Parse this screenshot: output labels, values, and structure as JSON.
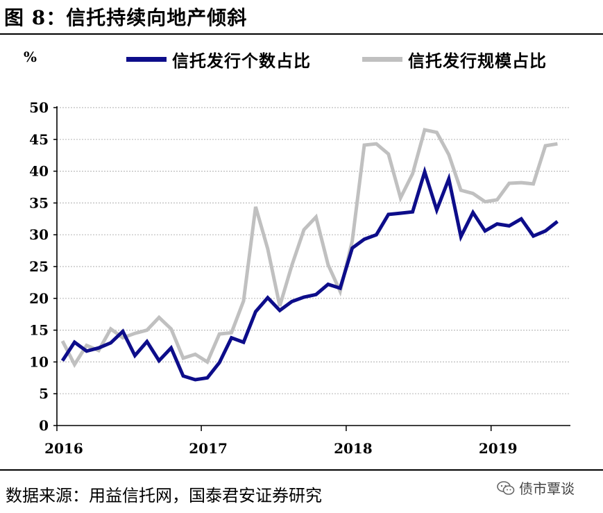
{
  "figure": {
    "title": "图 8：信托持续向地产倾斜",
    "unit": "%",
    "source": "数据来源：用益信托网，国泰君安证券研究",
    "watermark": "债市覃谈"
  },
  "chart_data": {
    "type": "line",
    "ylabel": "%",
    "ylim": [
      0,
      50
    ],
    "yticks": [
      0,
      5,
      10,
      15,
      20,
      25,
      30,
      35,
      40,
      45,
      50
    ],
    "xticks": [
      "2016",
      "2017",
      "2018",
      "2019"
    ],
    "grid": true,
    "legend_position": "top",
    "x": [
      "2016-01",
      "2016-02",
      "2016-03",
      "2016-04",
      "2016-05",
      "2016-06",
      "2016-07",
      "2016-08",
      "2016-09",
      "2016-10",
      "2016-11",
      "2016-12",
      "2017-01",
      "2017-02",
      "2017-03",
      "2017-04",
      "2017-05",
      "2017-06",
      "2017-07",
      "2017-08",
      "2017-09",
      "2017-10",
      "2017-11",
      "2017-12",
      "2018-01",
      "2018-02",
      "2018-03",
      "2018-04",
      "2018-05",
      "2018-06",
      "2018-07",
      "2018-08",
      "2018-09",
      "2018-10",
      "2018-11",
      "2018-12",
      "2019-01",
      "2019-02",
      "2019-03",
      "2019-04",
      "2019-05",
      "2019-06"
    ],
    "series": [
      {
        "name": "信托发行个数占比",
        "color": "#0d0d8a",
        "values": [
          10.2,
          13.1,
          11.7,
          12.2,
          13.0,
          14.8,
          11.0,
          13.2,
          10.2,
          12.2,
          7.8,
          7.2,
          7.5,
          9.9,
          13.8,
          13.1,
          17.9,
          20.1,
          18.1,
          19.5,
          20.2,
          20.6,
          22.2,
          21.6,
          27.9,
          29.3,
          30.0,
          33.2,
          33.4,
          33.6,
          39.9,
          33.9,
          38.8,
          29.7,
          33.5,
          30.6,
          31.7,
          31.4,
          32.5,
          29.8,
          30.6,
          32.1
        ]
      },
      {
        "name": "信托发行规模占比",
        "color": "#c0c0c0",
        "values": [
          13.3,
          9.6,
          12.6,
          11.8,
          15.2,
          13.8,
          14.5,
          15.0,
          17.0,
          15.2,
          10.6,
          11.2,
          10.0,
          14.4,
          14.6,
          19.6,
          34.4,
          27.8,
          18.8,
          25.2,
          30.8,
          32.8,
          25.3,
          21.1,
          29.0,
          44.1,
          44.3,
          42.7,
          35.8,
          39.6,
          46.5,
          46.1,
          42.6,
          37.0,
          36.5,
          35.2,
          35.5,
          38.1,
          38.2,
          38.0,
          44.0,
          44.3
        ]
      }
    ]
  }
}
